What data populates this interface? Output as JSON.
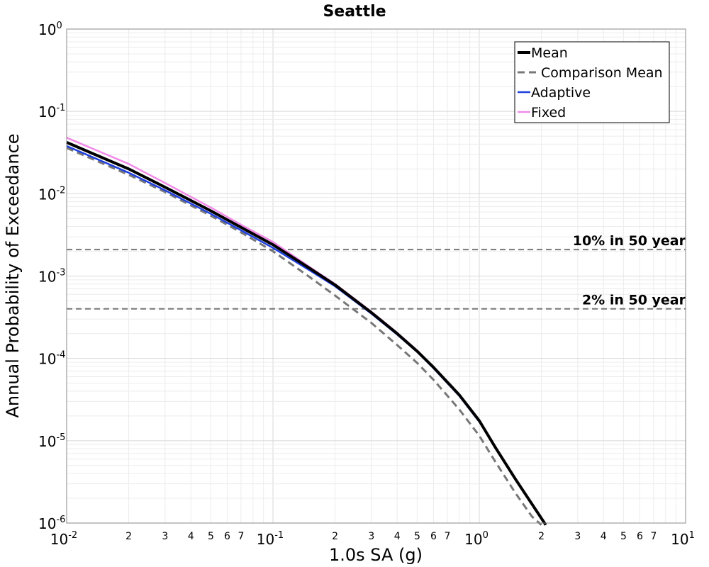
{
  "chart_data": {
    "type": "line",
    "title": "Seattle",
    "xlabel": "1.0s SA (g)",
    "ylabel": "Annual Probability of Exceedance",
    "xscale": "log",
    "yscale": "log",
    "xlim": [
      0.01,
      10
    ],
    "ylim": [
      1e-06,
      1
    ],
    "grid": true,
    "legend_position": "top-right",
    "x_ticks": [
      {
        "value": 0.01,
        "base": "10",
        "exp": "-2"
      },
      {
        "value": 0.1,
        "base": "10",
        "exp": "-1"
      },
      {
        "value": 1,
        "base": "10",
        "exp": "0"
      },
      {
        "value": 10,
        "base": "10",
        "exp": "1"
      }
    ],
    "x_minor_labels": [
      "2",
      "3",
      "4",
      "5",
      "6",
      "7"
    ],
    "y_ticks": [
      {
        "value": 1,
        "base": "10",
        "exp": "0"
      },
      {
        "value": 0.1,
        "base": "10",
        "exp": "-1"
      },
      {
        "value": 0.01,
        "base": "10",
        "exp": "-2"
      },
      {
        "value": 0.001,
        "base": "10",
        "exp": "-3"
      },
      {
        "value": 0.0001,
        "base": "10",
        "exp": "-4"
      },
      {
        "value": 1e-05,
        "base": "10",
        "exp": "-5"
      },
      {
        "value": 1e-06,
        "base": "10",
        "exp": "-6"
      }
    ],
    "reference_lines": [
      {
        "label": "10% in 50 year",
        "y": 0.0021,
        "color": "#777777"
      },
      {
        "label": "2% in 50 year",
        "y": 0.0004,
        "color": "#777777"
      }
    ],
    "series": [
      {
        "name": "Mean",
        "color": "#000000",
        "style": "solid",
        "width": 4,
        "x": [
          0.01,
          0.02,
          0.03,
          0.05,
          0.07,
          0.1,
          0.15,
          0.2,
          0.3,
          0.4,
          0.5,
          0.6,
          0.8,
          1.0,
          1.2,
          1.5,
          1.8,
          2.1
        ],
        "y": [
          0.042,
          0.02,
          0.012,
          0.0062,
          0.0039,
          0.0024,
          0.00125,
          0.00078,
          0.00036,
          0.0002,
          0.000122,
          7.8e-05,
          3.6e-05,
          1.75e-05,
          8.2e-06,
          3.4e-06,
          1.7e-06,
          9.5e-07
        ]
      },
      {
        "name": "Comparison Mean",
        "color": "#777777",
        "style": "dashed",
        "width": 3,
        "x": [
          0.01,
          0.02,
          0.03,
          0.05,
          0.07,
          0.1,
          0.15,
          0.2,
          0.3,
          0.4,
          0.5,
          0.6,
          0.8,
          1.0,
          1.2,
          1.5,
          1.8,
          2.0
        ],
        "y": [
          0.036,
          0.017,
          0.0105,
          0.0054,
          0.0034,
          0.002,
          0.00098,
          0.00058,
          0.00027,
          0.000145,
          8.8e-05,
          5.5e-05,
          2.4e-05,
          1.15e-05,
          5.5e-06,
          2.3e-06,
          1.2e-06,
          9.5e-07
        ]
      },
      {
        "name": "Adaptive",
        "color": "#1f3fe0",
        "style": "solid",
        "width": 2.5,
        "x": [
          0.01,
          0.02,
          0.03,
          0.05,
          0.07,
          0.1,
          0.15,
          0.2,
          0.3,
          0.4,
          0.5,
          0.6,
          0.8,
          1.0
        ],
        "y": [
          0.038,
          0.018,
          0.011,
          0.0057,
          0.0036,
          0.0022,
          0.00118,
          0.00075,
          0.00035,
          0.000195,
          0.00012,
          7.6e-05,
          3.5e-05,
          1.7e-05
        ]
      },
      {
        "name": "Fixed",
        "color": "#f28ae8",
        "style": "solid",
        "width": 2.5,
        "x": [
          0.01,
          0.02,
          0.03,
          0.05,
          0.07,
          0.1,
          0.15,
          0.2,
          0.3,
          0.4,
          0.5,
          0.6,
          0.8,
          1.0
        ],
        "y": [
          0.048,
          0.023,
          0.0135,
          0.0068,
          0.0042,
          0.0026,
          0.0013,
          0.0008,
          0.00037,
          0.000205,
          0.000125,
          7.9e-05,
          3.6e-05,
          1.75e-05
        ]
      }
    ]
  }
}
